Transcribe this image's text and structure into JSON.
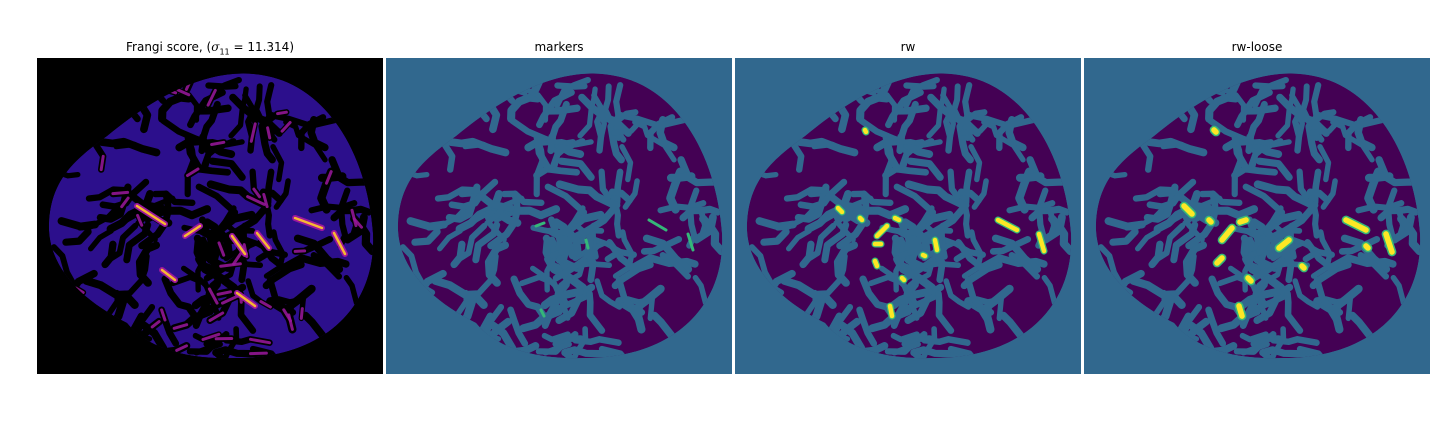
{
  "panels": [
    {
      "title_prefix": "Frangi score, (",
      "title_sigma": "σ",
      "title_sub": "11",
      "title_suffix": " = 11.314)"
    },
    {
      "title": "markers"
    },
    {
      "title": "rw"
    },
    {
      "title": "rw-loose"
    }
  ],
  "colors": {
    "frangi_background": "#000000",
    "frangi_tissue": "#2c0f8c",
    "frangi_mid": "#9b179e",
    "frangi_high": "#f8b832",
    "seg_background": "#31688e",
    "seg_tissue": "#440154",
    "marker_fg": "#35b779",
    "segment_fill": "#fde725",
    "segment_edge": "#35b779"
  }
}
